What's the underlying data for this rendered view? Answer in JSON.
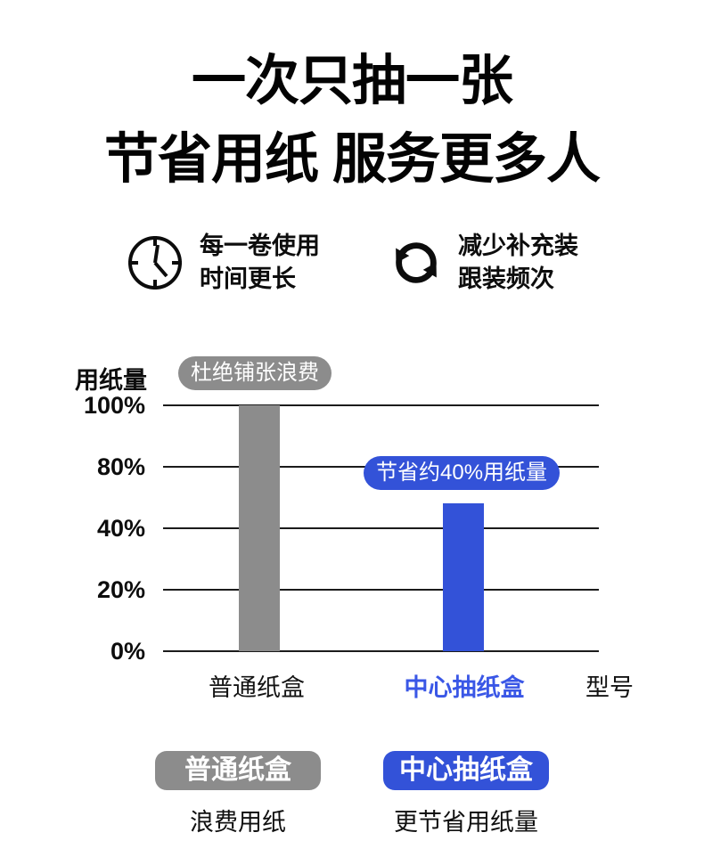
{
  "title": {
    "line1": "一次只抽一张",
    "line2": "节省用纸 服务更多人"
  },
  "features": [
    {
      "icon": "clock-icon",
      "line1": "每一卷使用",
      "line2": "时间更长"
    },
    {
      "icon": "refresh-icon",
      "line1": "减少补充装",
      "line2": "跟装频次"
    }
  ],
  "chart_data": {
    "type": "bar",
    "title": "",
    "ylabel": "用纸量",
    "xlabel": "型号",
    "categories": [
      "普通纸盒",
      "中心抽纸盒"
    ],
    "values": [
      100,
      60
    ],
    "unit": "%",
    "ylim": [
      0,
      100
    ],
    "ytick_labels": [
      "100%",
      "80%",
      "40%",
      "20%",
      "0%"
    ],
    "grid": true,
    "bar_colors": [
      "#8c8c8c",
      "#3352d8"
    ],
    "annotations": [
      {
        "text": "杜绝铺张浪费",
        "target": "普通纸盒",
        "color": "#8c8c8c"
      },
      {
        "text": "节省约40%用纸量",
        "target": "中心抽纸盒",
        "color": "#3352d8"
      }
    ]
  },
  "legend": [
    {
      "badge": "普通纸盒",
      "desc": "浪费用纸",
      "color": "#8c8c8c"
    },
    {
      "badge": "中心抽纸盒",
      "desc": "更节省用纸量",
      "color": "#3352d8"
    }
  ],
  "colors": {
    "accent_blue": "#3352d8",
    "label_blue": "#3a57e6",
    "gray": "#8c8c8c",
    "grid": "#1b1b1b",
    "text": "#0d0d0d",
    "badge_text": "#ffffff",
    "background": "#ffffff"
  }
}
